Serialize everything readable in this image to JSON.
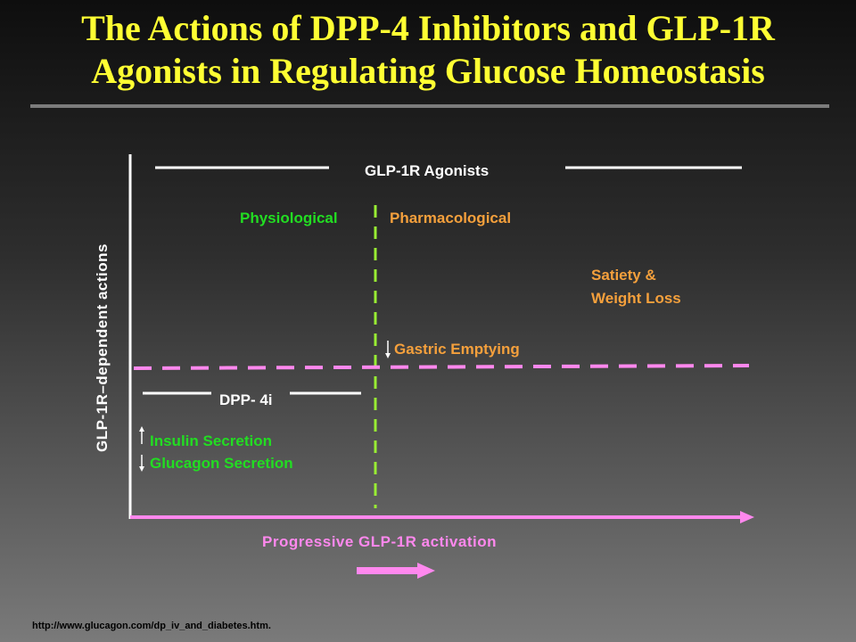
{
  "slide": {
    "title_line1": "The Actions of DPP-4 Inhibitors and GLP-1R",
    "title_line2": "Agonists in Regulating Glucose Homeostasis",
    "source": "http://www.glucagon.com/dp_iv_and_diabetes.htm."
  },
  "diagram": {
    "y_axis_label": "GLP-1R–dependent actions",
    "x_axis_label": "Progressive GLP-1R activation",
    "agonists_label": "GLP-1R Agonists",
    "dpp4_label": "DPP- 4i",
    "physiological_label": "Physiological",
    "pharmacological_label": "Pharmacological",
    "satiety_line1": "Satiety &",
    "satiety_line2": "Weight Loss",
    "gastric_label": "Gastric Emptying",
    "insulin_label": "Insulin Secretion",
    "glucagon_label": "Glucagon Secretion"
  },
  "colors": {
    "title": "#ffff33",
    "physiological": "#22dd22",
    "pharmacological": "#f5a03c",
    "activation_axis": "#ff88ee",
    "divider": "#99ee33"
  }
}
